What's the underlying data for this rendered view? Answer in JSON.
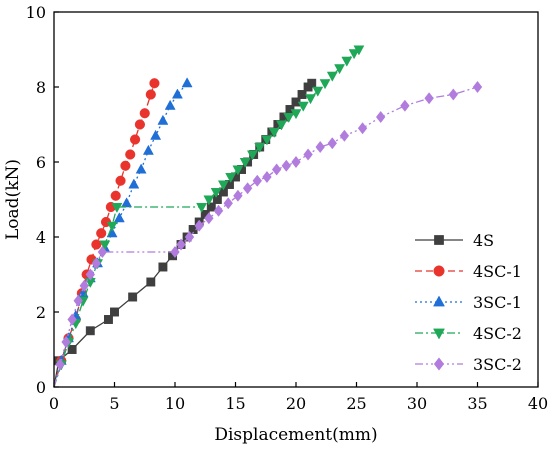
{
  "chart_data": {
    "type": "line",
    "title": "",
    "xlabel": "Displacement(mm)",
    "ylabel": "Load(kN)",
    "xlim": [
      0,
      40
    ],
    "ylim": [
      0,
      10
    ],
    "xticks": [
      0,
      5,
      10,
      15,
      20,
      25,
      30,
      35,
      40
    ],
    "yticks": [
      0,
      2,
      4,
      6,
      8,
      10
    ],
    "grid": false,
    "legend_position": "right-center",
    "series": [
      {
        "name": "4S",
        "color": "#3f3f3f",
        "line_style": "solid",
        "marker": "square",
        "x": [
          0,
          0.4,
          1.5,
          3.0,
          4.5,
          5.0,
          6.5,
          8.0,
          9.0,
          9.8,
          10.5,
          11.0,
          11.5,
          12.0,
          12.5,
          13.0,
          13.5,
          14.0,
          14.5,
          15.0,
          15.5,
          16.0,
          16.5,
          17.0,
          17.5,
          18.0,
          18.5,
          19.0,
          19.5,
          20.0,
          20.5,
          21.0,
          21.3
        ],
        "y": [
          0,
          0.7,
          1.0,
          1.5,
          1.8,
          2.0,
          2.4,
          2.8,
          3.2,
          3.5,
          3.8,
          4.0,
          4.2,
          4.4,
          4.6,
          4.8,
          5.0,
          5.2,
          5.4,
          5.6,
          5.8,
          6.0,
          6.2,
          6.4,
          6.6,
          6.8,
          7.0,
          7.2,
          7.4,
          7.6,
          7.8,
          8.0,
          8.1
        ]
      },
      {
        "name": "4SC-1",
        "color": "#e8342c",
        "line_style": "dashed",
        "marker": "circle",
        "x": [
          0,
          0.6,
          1.2,
          1.8,
          2.3,
          2.7,
          3.1,
          3.5,
          3.9,
          4.3,
          4.7,
          5.1,
          5.5,
          5.9,
          6.3,
          6.7,
          7.1,
          7.5,
          8.0,
          8.3
        ],
        "y": [
          0,
          0.7,
          1.3,
          1.8,
          2.5,
          3.0,
          3.4,
          3.8,
          4.1,
          4.4,
          4.8,
          5.1,
          5.5,
          5.9,
          6.2,
          6.6,
          7.0,
          7.3,
          7.8,
          8.1
        ]
      },
      {
        "name": "3SC-1",
        "color": "#1f6fd6",
        "line_style": "dotted",
        "marker": "triangle-up",
        "x": [
          0,
          0.6,
          1.2,
          1.8,
          2.4,
          3.0,
          3.6,
          4.2,
          4.8,
          5.4,
          6.0,
          6.6,
          7.2,
          7.8,
          8.4,
          9.0,
          9.6,
          10.2,
          11.0
        ],
        "y": [
          0,
          0.7,
          1.3,
          1.9,
          2.5,
          2.9,
          3.3,
          3.7,
          4.1,
          4.5,
          4.9,
          5.4,
          5.8,
          6.3,
          6.7,
          7.1,
          7.5,
          7.8,
          8.1
        ]
      },
      {
        "name": "4SC-2",
        "color": "#1fa857",
        "line_style": "dash-dot",
        "marker": "triangle-down",
        "x": [
          0,
          0.6,
          1.2,
          1.8,
          2.4,
          3.0,
          3.6,
          4.2,
          4.8,
          5.2,
          12.2,
          12.8,
          13.4,
          14.0,
          14.6,
          15.2,
          15.8,
          16.4,
          17.0,
          17.6,
          18.2,
          18.8,
          19.4,
          20.0,
          20.6,
          21.2,
          21.8,
          22.4,
          23.0,
          23.6,
          24.2,
          24.8,
          25.2
        ],
        "y": [
          0,
          0.6,
          1.2,
          1.7,
          2.3,
          2.8,
          3.3,
          3.8,
          4.3,
          4.8,
          4.8,
          5.0,
          5.2,
          5.4,
          5.6,
          5.8,
          6.0,
          6.2,
          6.4,
          6.6,
          6.8,
          7.0,
          7.2,
          7.3,
          7.5,
          7.7,
          7.9,
          8.1,
          8.3,
          8.5,
          8.7,
          8.9,
          9.0
        ]
      },
      {
        "name": "3SC-2",
        "color": "#b17cde",
        "line_style": "dash-dot-dot",
        "marker": "diamond",
        "x": [
          0,
          0.5,
          1.0,
          1.5,
          2.0,
          2.5,
          3.0,
          3.5,
          4.0,
          10.0,
          10.5,
          11.2,
          12.0,
          12.8,
          13.6,
          14.4,
          15.2,
          16.0,
          16.8,
          17.6,
          18.4,
          19.2,
          20.0,
          21.0,
          22.0,
          23.0,
          24.0,
          25.5,
          27.0,
          29.0,
          31.0,
          33.0,
          35.0
        ],
        "y": [
          0,
          0.6,
          1.2,
          1.8,
          2.3,
          2.7,
          3.0,
          3.3,
          3.6,
          3.6,
          3.8,
          4.0,
          4.3,
          4.5,
          4.7,
          4.9,
          5.1,
          5.3,
          5.5,
          5.6,
          5.8,
          5.9,
          6.0,
          6.2,
          6.4,
          6.5,
          6.7,
          6.9,
          7.2,
          7.5,
          7.7,
          7.8,
          8.0
        ]
      }
    ]
  }
}
